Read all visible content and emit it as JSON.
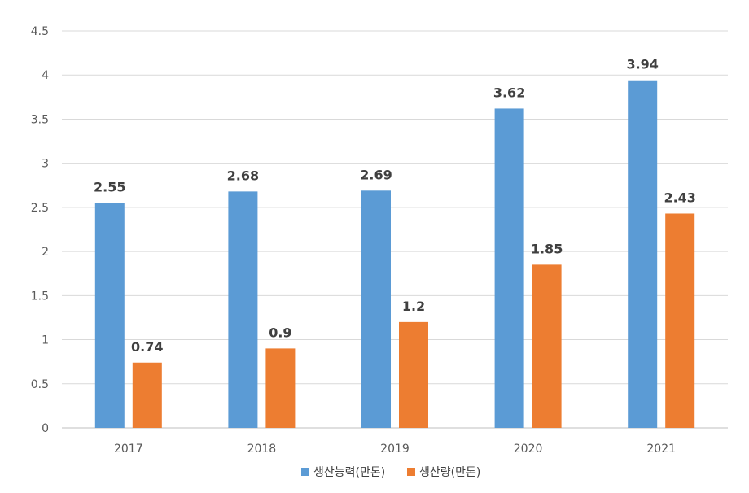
{
  "chart_data": {
    "type": "bar",
    "categories": [
      "2017",
      "2018",
      "2019",
      "2020",
      "2021"
    ],
    "series": [
      {
        "name": "생산능력(만톤)",
        "values": [
          2.55,
          2.68,
          2.69,
          3.62,
          3.94
        ],
        "labels": [
          "2.55",
          "2.68",
          "2.69",
          "3.62",
          "3.94"
        ],
        "color": "#5B9BD5"
      },
      {
        "name": "생산량(만톤)",
        "values": [
          0.74,
          0.9,
          1.2,
          1.85,
          2.43
        ],
        "labels": [
          "0.74",
          "0.9",
          "1.2",
          "1.85",
          "2.43"
        ],
        "color": "#ED7D31"
      }
    ],
    "yticks": [
      "0",
      "0.5",
      "1",
      "1.5",
      "2",
      "2.5",
      "3",
      "3.5",
      "4",
      "4.5"
    ],
    "ylim": [
      0,
      4.5
    ],
    "grid": true,
    "legend_position": "bottom"
  }
}
